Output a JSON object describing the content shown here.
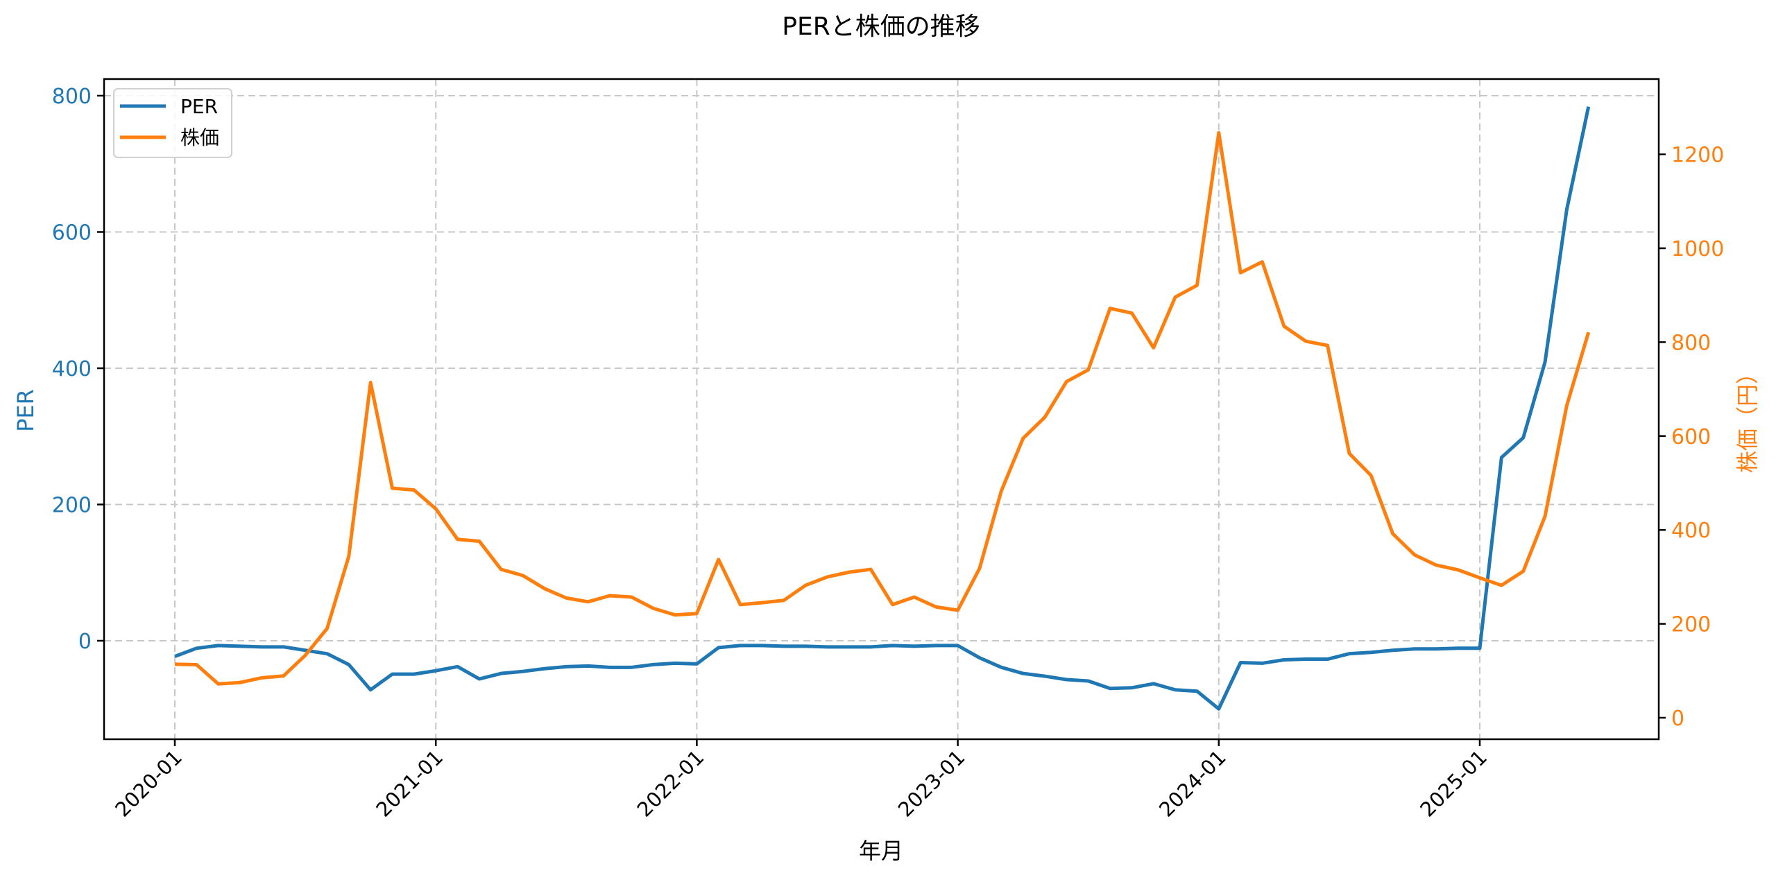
{
  "chart_data": {
    "type": "line",
    "title": "PERと株価の推移",
    "xlabel": "年月",
    "ylabel": "PER",
    "y2label": "株価（円）",
    "grid": true,
    "legend_position": "upper left",
    "ylim": [
      -145,
      825
    ],
    "y2lim": [
      -45,
      1385
    ],
    "yticks": [
      0,
      200,
      400,
      600,
      800
    ],
    "y2ticks": [
      0,
      200,
      400,
      600,
      800,
      1000,
      1200
    ],
    "xtick_labels": [
      "2020-01",
      "2021-01",
      "2022-01",
      "2023-01",
      "2024-01",
      "2025-01"
    ],
    "xtick_indices": [
      0,
      12,
      24,
      36,
      48,
      60
    ],
    "x": [
      "2020-01",
      "2020-02",
      "2020-03",
      "2020-04",
      "2020-05",
      "2020-06",
      "2020-07",
      "2020-08",
      "2020-09",
      "2020-10",
      "2020-11",
      "2020-12",
      "2021-01",
      "2021-02",
      "2021-03",
      "2021-04",
      "2021-05",
      "2021-06",
      "2021-07",
      "2021-08",
      "2021-09",
      "2021-10",
      "2021-11",
      "2021-12",
      "2022-01",
      "2022-02",
      "2022-03",
      "2022-04",
      "2022-05",
      "2022-06",
      "2022-07",
      "2022-08",
      "2022-09",
      "2022-10",
      "2022-11",
      "2022-12",
      "2023-01",
      "2023-02",
      "2023-03",
      "2023-04",
      "2023-05",
      "2023-06",
      "2023-07",
      "2023-08",
      "2023-09",
      "2023-10",
      "2023-11",
      "2023-12",
      "2024-01",
      "2024-02",
      "2024-03",
      "2024-04",
      "2024-05",
      "2024-06",
      "2024-07",
      "2024-08",
      "2024-09",
      "2024-10",
      "2024-11",
      "2024-12",
      "2025-01",
      "2025-02",
      "2025-03",
      "2025-04",
      "2025-05",
      "2025-06"
    ],
    "series": [
      {
        "name": "PER",
        "axis": "left",
        "color": "#1f77b4",
        "values": [
          -23,
          -11,
          -7,
          -8,
          -9,
          -9,
          -14,
          -19,
          -35,
          -72,
          -49,
          -49,
          -44,
          -38,
          -56,
          -48,
          -45,
          -41,
          -38,
          -37,
          -39,
          -39,
          -35,
          -33,
          -34,
          -10,
          -7,
          -7,
          -8,
          -8,
          -9,
          -9,
          -9,
          -7,
          -8,
          -7,
          -7,
          -25,
          -39,
          -48,
          -52,
          -57,
          -59,
          -70,
          -69,
          -63,
          -72,
          -74,
          -100,
          -32,
          -33,
          -28,
          -27,
          -27,
          -19,
          -17,
          -14,
          -12,
          -12,
          -11,
          -11,
          269,
          298,
          409,
          633,
          784
        ]
      },
      {
        "name": "株価",
        "axis": "right",
        "color": "#ff7f0e",
        "values": [
          114,
          113,
          72,
          75,
          85,
          89,
          133,
          190,
          344,
          714,
          489,
          485,
          445,
          380,
          376,
          316,
          303,
          275,
          255,
          247,
          260,
          257,
          233,
          219,
          222,
          337,
          241,
          245,
          250,
          282,
          300,
          310,
          316,
          241,
          257,
          236,
          229,
          318,
          483,
          595,
          640,
          716,
          741,
          872,
          862,
          788,
          896,
          921,
          1246,
          948,
          971,
          834,
          802,
          793,
          563,
          516,
          392,
          347,
          325,
          315,
          298,
          282,
          312,
          429,
          665,
          821
        ]
      }
    ]
  },
  "legend": {
    "items": [
      {
        "label": "PER",
        "color": "#1f77b4"
      },
      {
        "label": "株価",
        "color": "#ff7f0e"
      }
    ]
  }
}
